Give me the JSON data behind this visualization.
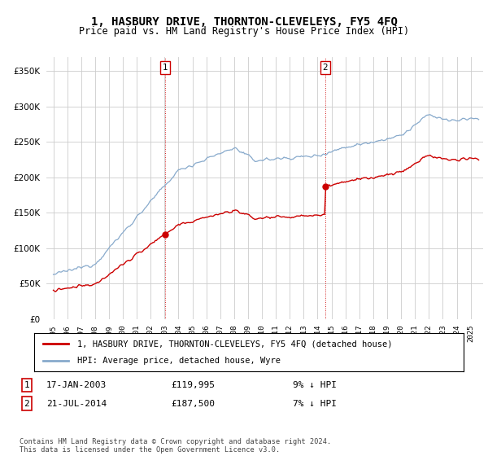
{
  "title": "1, HASBURY DRIVE, THORNTON-CLEVELEYS, FY5 4FQ",
  "subtitle": "Price paid vs. HM Land Registry's House Price Index (HPI)",
  "ylim": [
    0,
    370000
  ],
  "sale1_date": "17-JAN-2003",
  "sale1_price": 119995,
  "sale1_label": "9% ↓ HPI",
  "sale1_x": 2003.04,
  "sale2_date": "21-JUL-2014",
  "sale2_price": 187500,
  "sale2_label": "7% ↓ HPI",
  "sale2_x": 2014.55,
  "line1_label": "1, HASBURY DRIVE, THORNTON-CLEVELEYS, FY5 4FQ (detached house)",
  "line2_label": "HPI: Average price, detached house, Wyre",
  "footer": "Contains HM Land Registry data © Crown copyright and database right 2024.\nThis data is licensed under the Open Government Licence v3.0.",
  "line1_color": "#cc0000",
  "line2_color": "#88aacc",
  "vline_color": "#cc0000",
  "background_color": "#ffffff",
  "grid_color": "#cccccc"
}
